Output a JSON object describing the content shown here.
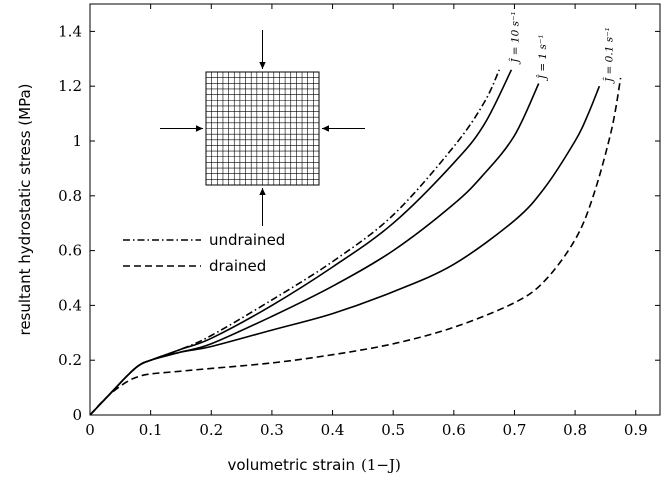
{
  "chart_data": {
    "type": "line",
    "xlabel": "volumetric strain",
    "xlabel_math": "(1−J)",
    "ylabel": "resultant hydrostatic stress (MPa)",
    "xlim": [
      0,
      0.94
    ],
    "ylim": [
      0,
      1.5
    ],
    "xticks": [
      "0",
      "0.1",
      "0.2",
      "0.3",
      "0.4",
      "0.5",
      "0.6",
      "0.7",
      "0.8",
      "0.9"
    ],
    "yticks": [
      "0",
      "0.2",
      "0.4",
      "0.6",
      "0.8",
      "1",
      "1.2",
      "1.4"
    ],
    "grid": false,
    "legend_position": "center-left",
    "series": [
      {
        "name": "undrained",
        "style": "dashdot",
        "x": [
          0,
          0.03,
          0.06,
          0.08,
          0.1,
          0.15,
          0.2,
          0.3,
          0.4,
          0.5,
          0.6,
          0.65,
          0.675
        ],
        "y": [
          0,
          0.07,
          0.14,
          0.18,
          0.2,
          0.24,
          0.29,
          0.42,
          0.56,
          0.73,
          0.98,
          1.14,
          1.26
        ]
      },
      {
        "name": "drained",
        "style": "dashed",
        "x": [
          0,
          0.03,
          0.06,
          0.08,
          0.1,
          0.15,
          0.2,
          0.3,
          0.4,
          0.5,
          0.6,
          0.7,
          0.75,
          0.8,
          0.83,
          0.86,
          0.875
        ],
        "y": [
          0,
          0.07,
          0.12,
          0.14,
          0.15,
          0.16,
          0.17,
          0.19,
          0.22,
          0.26,
          0.32,
          0.41,
          0.49,
          0.64,
          0.8,
          1.04,
          1.23
        ]
      },
      {
        "style": "solid",
        "x": [
          0,
          0.03,
          0.06,
          0.08,
          0.1,
          0.15,
          0.2,
          0.3,
          0.4,
          0.5,
          0.6,
          0.65,
          0.695
        ],
        "y": [
          0,
          0.07,
          0.14,
          0.18,
          0.2,
          0.24,
          0.28,
          0.4,
          0.54,
          0.7,
          0.92,
          1.06,
          1.26
        ]
      },
      {
        "style": "solid",
        "x": [
          0,
          0.03,
          0.06,
          0.08,
          0.1,
          0.15,
          0.2,
          0.3,
          0.4,
          0.5,
          0.6,
          0.65,
          0.7,
          0.74
        ],
        "y": [
          0,
          0.07,
          0.14,
          0.18,
          0.2,
          0.23,
          0.26,
          0.36,
          0.47,
          0.6,
          0.77,
          0.88,
          1.02,
          1.21
        ]
      },
      {
        "style": "solid",
        "x": [
          0,
          0.03,
          0.06,
          0.08,
          0.1,
          0.15,
          0.2,
          0.3,
          0.4,
          0.5,
          0.6,
          0.7,
          0.75,
          0.8,
          0.82,
          0.84
        ],
        "y": [
          0,
          0.07,
          0.14,
          0.18,
          0.2,
          0.23,
          0.25,
          0.31,
          0.37,
          0.45,
          0.55,
          0.71,
          0.83,
          1.0,
          1.09,
          1.2
        ]
      }
    ],
    "annotations": {
      "rate_labels": [
        "Ĵ = 10 s⁻¹",
        "Ĵ = 1 s⁻¹",
        "Ĵ = 0.1 s⁻¹"
      ],
      "rate_anchor": [
        [
          0.7,
          1.3
        ],
        [
          0.745,
          1.24
        ],
        [
          0.855,
          1.23
        ]
      ]
    },
    "inset": {
      "description_icons": [
        "mesh-grid",
        "arrow-down",
        "arrow-up",
        "arrow-right",
        "arrow-left"
      ]
    }
  }
}
